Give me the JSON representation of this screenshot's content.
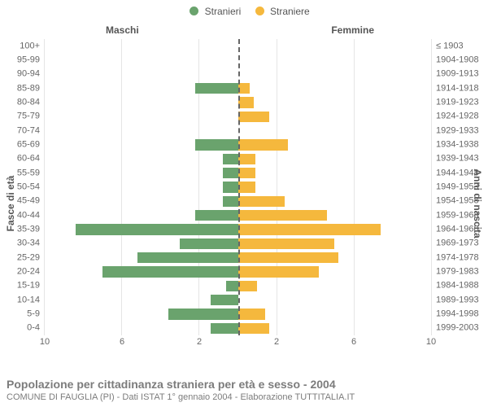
{
  "legend": {
    "male": {
      "label": "Stranieri",
      "color": "#6aa36d"
    },
    "female": {
      "label": "Straniere",
      "color": "#f5b83d"
    }
  },
  "headers": {
    "left": "Maschi",
    "right": "Femmine"
  },
  "axis": {
    "x_max": 10,
    "x_ticks": [
      10,
      6,
      2,
      2,
      6,
      10
    ],
    "y_title_left": "Fasce di età",
    "y_title_right": "Anni di nascita",
    "grid_color": "#e5e5e5",
    "center_line_color": "#666666"
  },
  "rows": [
    {
      "age": "100+",
      "years": "≤ 1903",
      "m": 0,
      "f": 0
    },
    {
      "age": "95-99",
      "years": "1904-1908",
      "m": 0,
      "f": 0
    },
    {
      "age": "90-94",
      "years": "1909-1913",
      "m": 0,
      "f": 0
    },
    {
      "age": "85-89",
      "years": "1914-1918",
      "m": 2.2,
      "f": 0.6
    },
    {
      "age": "80-84",
      "years": "1919-1923",
      "m": 0,
      "f": 0.8
    },
    {
      "age": "75-79",
      "years": "1924-1928",
      "m": 0,
      "f": 1.6
    },
    {
      "age": "70-74",
      "years": "1929-1933",
      "m": 0,
      "f": 0
    },
    {
      "age": "65-69",
      "years": "1934-1938",
      "m": 2.2,
      "f": 2.6
    },
    {
      "age": "60-64",
      "years": "1939-1943",
      "m": 0.8,
      "f": 0.9
    },
    {
      "age": "55-59",
      "years": "1944-1948",
      "m": 0.8,
      "f": 0.9
    },
    {
      "age": "50-54",
      "years": "1949-1953",
      "m": 0.8,
      "f": 0.9
    },
    {
      "age": "45-49",
      "years": "1954-1958",
      "m": 0.8,
      "f": 2.4
    },
    {
      "age": "40-44",
      "years": "1959-1963",
      "m": 2.2,
      "f": 4.6
    },
    {
      "age": "35-39",
      "years": "1964-1968",
      "m": 8.4,
      "f": 7.4
    },
    {
      "age": "30-34",
      "years": "1969-1973",
      "m": 3.0,
      "f": 5.0
    },
    {
      "age": "25-29",
      "years": "1974-1978",
      "m": 5.2,
      "f": 5.2
    },
    {
      "age": "20-24",
      "years": "1979-1983",
      "m": 7.0,
      "f": 4.2
    },
    {
      "age": "15-19",
      "years": "1984-1988",
      "m": 0.6,
      "f": 1.0
    },
    {
      "age": "10-14",
      "years": "1989-1993",
      "m": 1.4,
      "f": 0
    },
    {
      "age": "5-9",
      "years": "1994-1998",
      "m": 3.6,
      "f": 1.4
    },
    {
      "age": "0-4",
      "years": "1999-2003",
      "m": 1.4,
      "f": 1.6
    }
  ],
  "footer": {
    "line1": "Popolazione per cittadinanza straniera per età e sesso - 2004",
    "line2": "COMUNE DI FAUGLIA (PI) - Dati ISTAT 1° gennaio 2004 - Elaborazione TUTTITALIA.IT"
  },
  "colors": {
    "male_bar": "#6aa36d",
    "female_bar": "#f5b83d",
    "text": "#666666",
    "background": "#ffffff"
  }
}
